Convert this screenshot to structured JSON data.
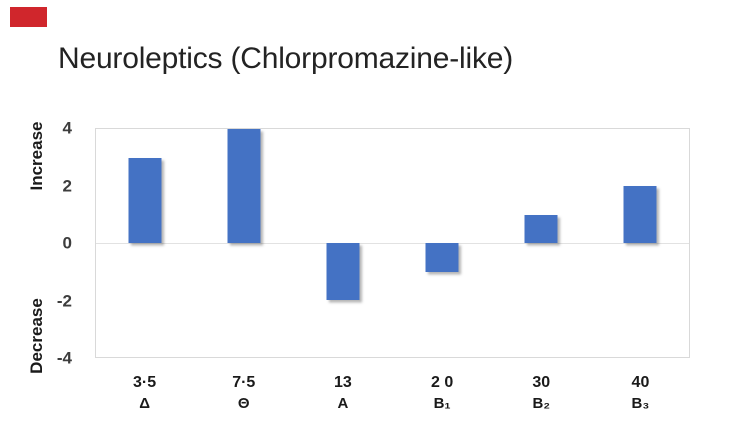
{
  "annotation_marker": {
    "color": "#d0262c"
  },
  "chart_data": {
    "type": "bar",
    "title": "Neuroleptics (Chlorpromazine-like)",
    "categories": [
      "3·5",
      "7·5",
      "13",
      "2 0",
      "30",
      "40"
    ],
    "category_symbols": [
      "Δ",
      "Θ",
      "A",
      "B₁",
      "B₂",
      "B₃"
    ],
    "values": [
      3,
      4,
      -2,
      -1,
      1,
      2
    ],
    "ylim": [
      -4,
      4
    ],
    "yticks": [
      "4",
      "2",
      "0",
      "-2",
      "-4"
    ],
    "ytick_values": [
      4,
      2,
      0,
      -2,
      -4
    ],
    "ylabel_upper": "Increase",
    "ylabel_lower": "Decrease",
    "xlabel": "",
    "legend": "none",
    "grid": "horizontal zero gridline only",
    "bar_color": "#4472c4",
    "plot_border_color": "#d9d9d9",
    "zero_line_color": "#e2e2e2",
    "text_color": "#1a1a1a"
  }
}
